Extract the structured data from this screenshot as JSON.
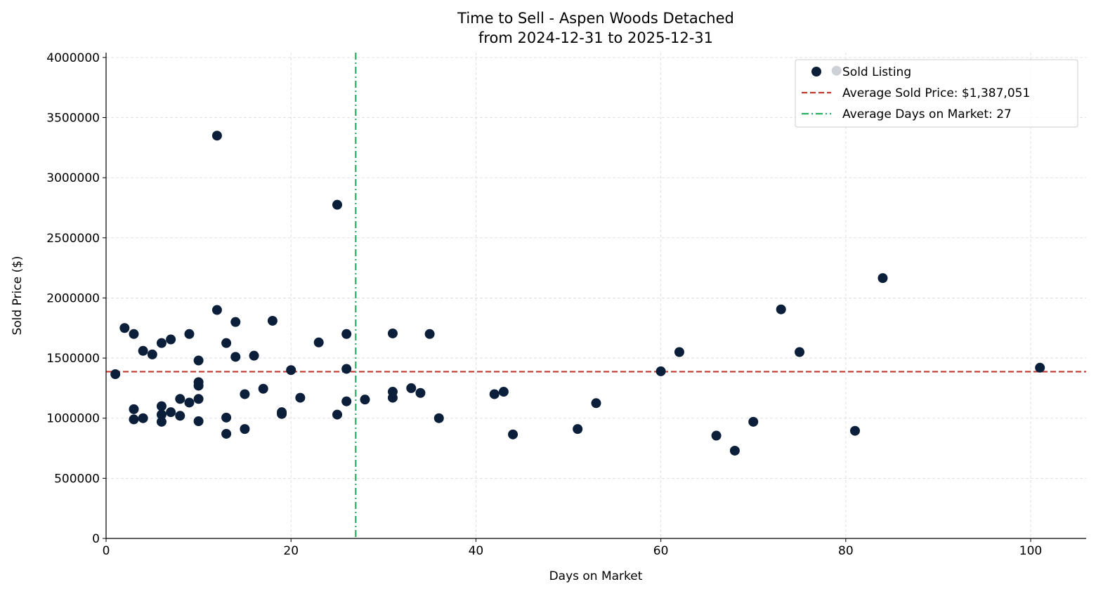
{
  "chart_data": {
    "type": "scatter",
    "title": "Time to Sell - Aspen Woods Detached",
    "subtitle": "from 2024-12-31 to 2025-12-31",
    "xlabel": "Days on Market",
    "ylabel": "Sold Price ($)",
    "xlim": [
      0,
      106
    ],
    "ylim": [
      0,
      4040000
    ],
    "xticks": [
      0,
      20,
      40,
      60,
      80,
      100
    ],
    "yticks": [
      0,
      500000,
      1000000,
      1500000,
      2000000,
      2500000,
      3000000,
      3500000,
      4000000
    ],
    "grid": true,
    "legend_placement": "top-right",
    "colors": {
      "points": "#0b1f3a",
      "avg_price": "#c0392b",
      "avg_days": "#27ae60",
      "grid": "#d9d9d9"
    },
    "series": [
      {
        "name": "Sold Listing",
        "points": [
          [
            1,
            1366000
          ],
          [
            2,
            1750000
          ],
          [
            3,
            1700000
          ],
          [
            3,
            1075000
          ],
          [
            3,
            990000
          ],
          [
            4,
            1560000
          ],
          [
            4,
            1000000
          ],
          [
            5,
            1530000
          ],
          [
            6,
            1625000
          ],
          [
            6,
            1100000
          ],
          [
            6,
            1030000
          ],
          [
            6,
            970000
          ],
          [
            7,
            1655000
          ],
          [
            7,
            1050000
          ],
          [
            8,
            1160000
          ],
          [
            8,
            1020000
          ],
          [
            9,
            1700000
          ],
          [
            9,
            1130000
          ],
          [
            10,
            1480000
          ],
          [
            10,
            1300000
          ],
          [
            10,
            1270000
          ],
          [
            10,
            1160000
          ],
          [
            10,
            975000
          ],
          [
            12,
            3350000
          ],
          [
            12,
            1900000
          ],
          [
            13,
            1625000
          ],
          [
            13,
            1005000
          ],
          [
            13,
            870000
          ],
          [
            14,
            1800000
          ],
          [
            14,
            1510000
          ],
          [
            15,
            1200000
          ],
          [
            15,
            910000
          ],
          [
            16,
            1520000
          ],
          [
            17,
            1245000
          ],
          [
            18,
            1810000
          ],
          [
            19,
            1050000
          ],
          [
            19,
            1035000
          ],
          [
            20,
            1400000
          ],
          [
            21,
            1170000
          ],
          [
            23,
            1630000
          ],
          [
            25,
            2775000
          ],
          [
            25,
            1030000
          ],
          [
            26,
            1700000
          ],
          [
            26,
            1410000
          ],
          [
            26,
            1140000
          ],
          [
            28,
            1155000
          ],
          [
            31,
            1705000
          ],
          [
            31,
            1220000
          ],
          [
            31,
            1170000
          ],
          [
            33,
            1250000
          ],
          [
            34,
            1210000
          ],
          [
            35,
            1700000
          ],
          [
            36,
            1000000
          ],
          [
            42,
            1200000
          ],
          [
            43,
            1220000
          ],
          [
            44,
            865000
          ],
          [
            51,
            910000
          ],
          [
            53,
            1125000
          ],
          [
            60,
            1390000
          ],
          [
            62,
            1550000
          ],
          [
            66,
            855000
          ],
          [
            68,
            730000
          ],
          [
            70,
            970000
          ],
          [
            73,
            1905000
          ],
          [
            75,
            1550000
          ],
          [
            79,
            3890000
          ],
          [
            81,
            895000
          ],
          [
            84,
            2165000
          ],
          [
            101,
            1420000
          ]
        ]
      }
    ],
    "avg_price": 1387051,
    "avg_days": 27,
    "legend": [
      "Sold Listing",
      "Average Sold Price: $1,387,051",
      "Average Days on Market: 27"
    ]
  }
}
